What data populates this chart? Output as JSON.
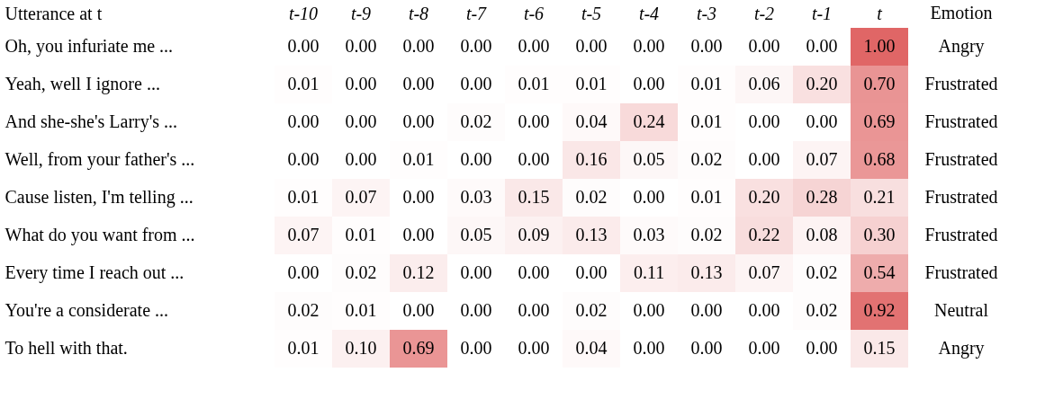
{
  "chart_data": {
    "type": "heatmap",
    "ylabel": "Utterance at t",
    "y2label": "Emotion",
    "data_labels": true,
    "categories": [
      "t-10",
      "t-9",
      "t-8",
      "t-7",
      "t-6",
      "t-5",
      "t-4",
      "t-3",
      "t-2",
      "t-1",
      "t"
    ],
    "y_categories": [
      "Oh, you infuriate me ...",
      "Yeah, well I ignore ...",
      "And she-she's Larry's ...",
      "Well, from your father's ...",
      "Cause listen, I'm telling ...",
      "What do you want from ...",
      "Every time I reach out ...",
      "You're a considerate ...",
      "To hell with that."
    ],
    "y2_categories": [
      "Angry",
      "Frustrated",
      "Frustrated",
      "Frustrated",
      "Frustrated",
      "Frustrated",
      "Frustrated",
      "Neutral",
      "Angry"
    ],
    "cell_labels": [
      [
        "0.00",
        "0.00",
        "0.00",
        "0.00",
        "0.00",
        "0.00",
        "0.00",
        "0.00",
        "0.00",
        "0.00",
        "1.00"
      ],
      [
        "0.01",
        "0.00",
        "0.00",
        "0.00",
        "0.01",
        "0.01",
        "0.00",
        "0.01",
        "0.06",
        "0.20",
        "0.70"
      ],
      [
        "0.00",
        "0.00",
        "0.00",
        "0.02",
        "0.00",
        "0.04",
        "0.24",
        "0.01",
        "0.00",
        "0.00",
        "0.69"
      ],
      [
        "0.00",
        "0.00",
        "0.01",
        "0.00",
        "0.00",
        "0.16",
        "0.05",
        "0.02",
        "0.00",
        "0.07",
        "0.68"
      ],
      [
        "0.01",
        "0.07",
        "0.00",
        "0.03",
        "0.15",
        "0.02",
        "0.00",
        "0.01",
        "0.20",
        "0.28",
        "0.21"
      ],
      [
        "0.07",
        "0.01",
        "0.00",
        "0.05",
        "0.09",
        "0.13",
        "0.03",
        "0.02",
        "0.22",
        "0.08",
        "0.30"
      ],
      [
        "0.00",
        "0.02",
        "0.12",
        "0.00",
        "0.00",
        "0.00",
        "0.11",
        "0.13",
        "0.07",
        "0.02",
        "0.54"
      ],
      [
        "0.02",
        "0.01",
        "0.00",
        "0.00",
        "0.00",
        "0.02",
        "0.00",
        "0.00",
        "0.00",
        "0.02",
        "0.92"
      ],
      [
        "0.01",
        "0.10",
        "0.69",
        "0.00",
        "0.00",
        "0.04",
        "0.00",
        "0.00",
        "0.00",
        "0.00",
        "0.15"
      ]
    ],
    "cells": [
      [
        0.0,
        0.0,
        0.0,
        0.0,
        0.0,
        0.0,
        0.0,
        0.0,
        0.0,
        0.0,
        1.0
      ],
      [
        0.01,
        0.0,
        0.0,
        0.0,
        0.01,
        0.01,
        0.0,
        0.01,
        0.06,
        0.2,
        0.7
      ],
      [
        0.0,
        0.0,
        0.0,
        0.02,
        0.0,
        0.04,
        0.24,
        0.01,
        0.0,
        0.0,
        0.69
      ],
      [
        0.0,
        0.0,
        0.01,
        0.0,
        0.0,
        0.16,
        0.05,
        0.02,
        0.0,
        0.07,
        0.68
      ],
      [
        0.01,
        0.07,
        0.0,
        0.03,
        0.15,
        0.02,
        0.0,
        0.01,
        0.2,
        0.28,
        0.21
      ],
      [
        0.07,
        0.01,
        0.0,
        0.05,
        0.09,
        0.13,
        0.03,
        0.02,
        0.22,
        0.08,
        0.3
      ],
      [
        0.0,
        0.02,
        0.12,
        0.0,
        0.0,
        0.0,
        0.11,
        0.13,
        0.07,
        0.02,
        0.54
      ],
      [
        0.02,
        0.01,
        0.0,
        0.0,
        0.0,
        0.02,
        0.0,
        0.0,
        0.0,
        0.02,
        0.92
      ],
      [
        0.01,
        0.1,
        0.69,
        0.0,
        0.0,
        0.04,
        0.0,
        0.0,
        0.0,
        0.0,
        0.15
      ]
    ]
  }
}
